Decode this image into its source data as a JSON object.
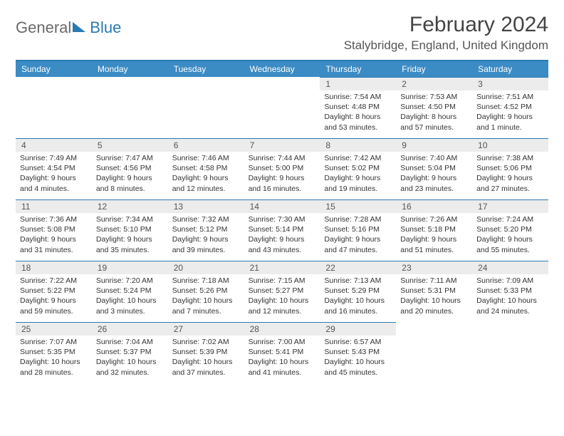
{
  "brand": {
    "text1": "General",
    "text2": "Blue"
  },
  "title": "February 2024",
  "location": "Stalybridge, England, United Kingdom",
  "colors": {
    "accent": "#2a7ab0",
    "header_bg": "#3b8bc4",
    "daynum_bg": "#ececec",
    "text": "#333333",
    "muted": "#555555",
    "background": "#ffffff"
  },
  "weekdays": [
    "Sunday",
    "Monday",
    "Tuesday",
    "Wednesday",
    "Thursday",
    "Friday",
    "Saturday"
  ],
  "grid": {
    "columns": 7,
    "rows": 5,
    "first_day_index": 4,
    "num_days": 29
  },
  "days": [
    {
      "n": 1,
      "sunrise": "7:54 AM",
      "sunset": "4:48 PM",
      "daylight": "8 hours and 53 minutes."
    },
    {
      "n": 2,
      "sunrise": "7:53 AM",
      "sunset": "4:50 PM",
      "daylight": "8 hours and 57 minutes."
    },
    {
      "n": 3,
      "sunrise": "7:51 AM",
      "sunset": "4:52 PM",
      "daylight": "9 hours and 1 minute."
    },
    {
      "n": 4,
      "sunrise": "7:49 AM",
      "sunset": "4:54 PM",
      "daylight": "9 hours and 4 minutes."
    },
    {
      "n": 5,
      "sunrise": "7:47 AM",
      "sunset": "4:56 PM",
      "daylight": "9 hours and 8 minutes."
    },
    {
      "n": 6,
      "sunrise": "7:46 AM",
      "sunset": "4:58 PM",
      "daylight": "9 hours and 12 minutes."
    },
    {
      "n": 7,
      "sunrise": "7:44 AM",
      "sunset": "5:00 PM",
      "daylight": "9 hours and 16 minutes."
    },
    {
      "n": 8,
      "sunrise": "7:42 AM",
      "sunset": "5:02 PM",
      "daylight": "9 hours and 19 minutes."
    },
    {
      "n": 9,
      "sunrise": "7:40 AM",
      "sunset": "5:04 PM",
      "daylight": "9 hours and 23 minutes."
    },
    {
      "n": 10,
      "sunrise": "7:38 AM",
      "sunset": "5:06 PM",
      "daylight": "9 hours and 27 minutes."
    },
    {
      "n": 11,
      "sunrise": "7:36 AM",
      "sunset": "5:08 PM",
      "daylight": "9 hours and 31 minutes."
    },
    {
      "n": 12,
      "sunrise": "7:34 AM",
      "sunset": "5:10 PM",
      "daylight": "9 hours and 35 minutes."
    },
    {
      "n": 13,
      "sunrise": "7:32 AM",
      "sunset": "5:12 PM",
      "daylight": "9 hours and 39 minutes."
    },
    {
      "n": 14,
      "sunrise": "7:30 AM",
      "sunset": "5:14 PM",
      "daylight": "9 hours and 43 minutes."
    },
    {
      "n": 15,
      "sunrise": "7:28 AM",
      "sunset": "5:16 PM",
      "daylight": "9 hours and 47 minutes."
    },
    {
      "n": 16,
      "sunrise": "7:26 AM",
      "sunset": "5:18 PM",
      "daylight": "9 hours and 51 minutes."
    },
    {
      "n": 17,
      "sunrise": "7:24 AM",
      "sunset": "5:20 PM",
      "daylight": "9 hours and 55 minutes."
    },
    {
      "n": 18,
      "sunrise": "7:22 AM",
      "sunset": "5:22 PM",
      "daylight": "9 hours and 59 minutes."
    },
    {
      "n": 19,
      "sunrise": "7:20 AM",
      "sunset": "5:24 PM",
      "daylight": "10 hours and 3 minutes."
    },
    {
      "n": 20,
      "sunrise": "7:18 AM",
      "sunset": "5:26 PM",
      "daylight": "10 hours and 7 minutes."
    },
    {
      "n": 21,
      "sunrise": "7:15 AM",
      "sunset": "5:27 PM",
      "daylight": "10 hours and 12 minutes."
    },
    {
      "n": 22,
      "sunrise": "7:13 AM",
      "sunset": "5:29 PM",
      "daylight": "10 hours and 16 minutes."
    },
    {
      "n": 23,
      "sunrise": "7:11 AM",
      "sunset": "5:31 PM",
      "daylight": "10 hours and 20 minutes."
    },
    {
      "n": 24,
      "sunrise": "7:09 AM",
      "sunset": "5:33 PM",
      "daylight": "10 hours and 24 minutes."
    },
    {
      "n": 25,
      "sunrise": "7:07 AM",
      "sunset": "5:35 PM",
      "daylight": "10 hours and 28 minutes."
    },
    {
      "n": 26,
      "sunrise": "7:04 AM",
      "sunset": "5:37 PM",
      "daylight": "10 hours and 32 minutes."
    },
    {
      "n": 27,
      "sunrise": "7:02 AM",
      "sunset": "5:39 PM",
      "daylight": "10 hours and 37 minutes."
    },
    {
      "n": 28,
      "sunrise": "7:00 AM",
      "sunset": "5:41 PM",
      "daylight": "10 hours and 41 minutes."
    },
    {
      "n": 29,
      "sunrise": "6:57 AM",
      "sunset": "5:43 PM",
      "daylight": "10 hours and 45 minutes."
    }
  ],
  "labels": {
    "sunrise": "Sunrise",
    "sunset": "Sunset",
    "daylight": "Daylight"
  }
}
